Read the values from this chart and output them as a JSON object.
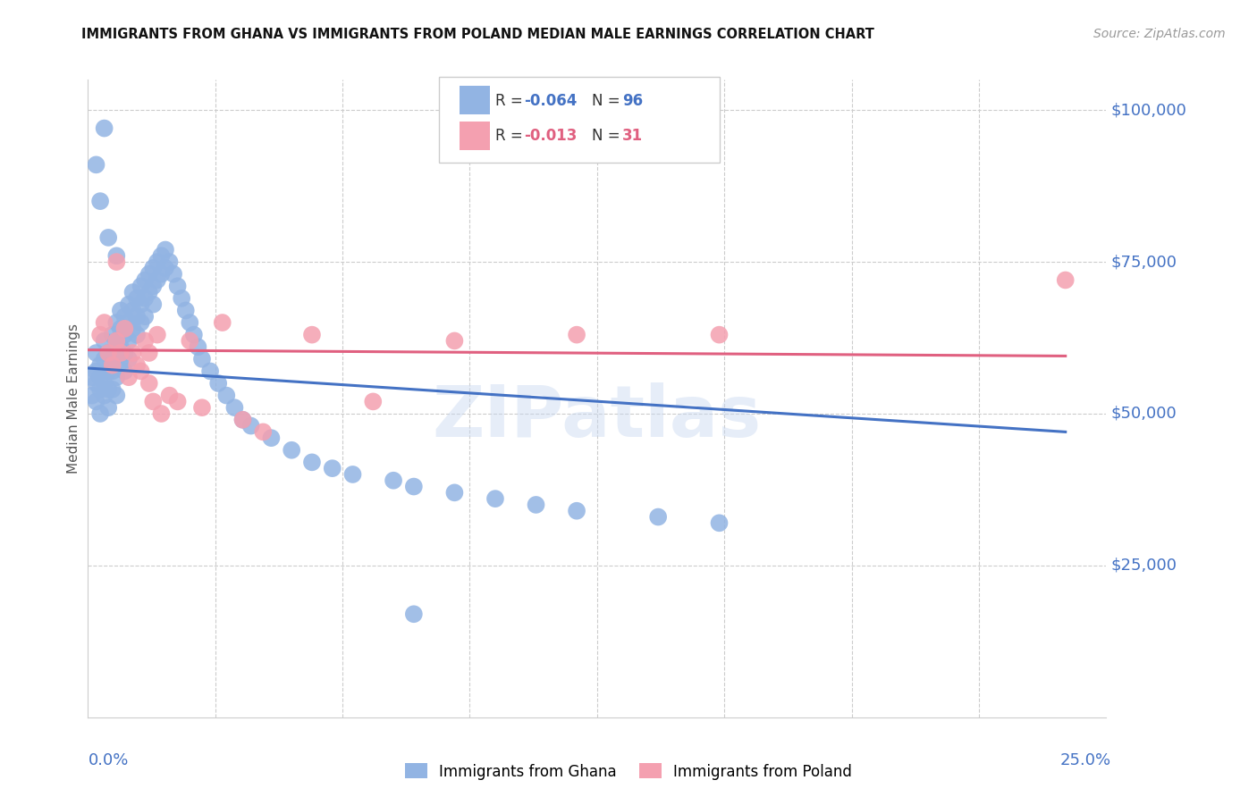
{
  "title": "IMMIGRANTS FROM GHANA VS IMMIGRANTS FROM POLAND MEDIAN MALE EARNINGS CORRELATION CHART",
  "source": "Source: ZipAtlas.com",
  "ylabel": "Median Male Earnings",
  "xlim": [
    0.0,
    0.25
  ],
  "ylim": [
    0,
    105000
  ],
  "ghana_R": "-0.064",
  "ghana_N": "96",
  "poland_R": "-0.013",
  "poland_N": "31",
  "ghana_color": "#92b4e3",
  "poland_color": "#f4a0b0",
  "ghana_line_color": "#4472c4",
  "poland_line_color": "#e06080",
  "ghana_line_x0": 0.0,
  "ghana_line_y0": 57500,
  "ghana_line_x1": 0.24,
  "ghana_line_y1": 47000,
  "poland_line_x0": 0.0,
  "poland_line_y0": 60500,
  "poland_line_x1": 0.24,
  "poland_line_y1": 59500,
  "ghana_x": [
    0.001,
    0.001,
    0.002,
    0.002,
    0.002,
    0.002,
    0.003,
    0.003,
    0.003,
    0.003,
    0.004,
    0.004,
    0.004,
    0.004,
    0.005,
    0.005,
    0.005,
    0.005,
    0.006,
    0.006,
    0.006,
    0.006,
    0.007,
    0.007,
    0.007,
    0.007,
    0.007,
    0.008,
    0.008,
    0.008,
    0.008,
    0.009,
    0.009,
    0.009,
    0.009,
    0.01,
    0.01,
    0.01,
    0.01,
    0.011,
    0.011,
    0.011,
    0.012,
    0.012,
    0.012,
    0.013,
    0.013,
    0.013,
    0.014,
    0.014,
    0.014,
    0.015,
    0.015,
    0.016,
    0.016,
    0.016,
    0.017,
    0.017,
    0.018,
    0.018,
    0.019,
    0.019,
    0.02,
    0.021,
    0.022,
    0.023,
    0.024,
    0.025,
    0.026,
    0.027,
    0.028,
    0.03,
    0.032,
    0.034,
    0.036,
    0.038,
    0.04,
    0.045,
    0.05,
    0.055,
    0.06,
    0.065,
    0.075,
    0.08,
    0.09,
    0.1,
    0.11,
    0.12,
    0.14,
    0.155,
    0.002,
    0.003,
    0.004,
    0.005,
    0.007,
    0.08
  ],
  "ghana_y": [
    56000,
    53000,
    55000,
    52000,
    60000,
    57000,
    54000,
    58000,
    56000,
    50000,
    62000,
    59000,
    55000,
    53000,
    60000,
    57000,
    54000,
    51000,
    63000,
    60000,
    57000,
    54000,
    65000,
    62000,
    59000,
    56000,
    53000,
    67000,
    64000,
    61000,
    58000,
    66000,
    63000,
    60000,
    57000,
    68000,
    65000,
    62000,
    59000,
    70000,
    67000,
    64000,
    69000,
    66000,
    63000,
    71000,
    68000,
    65000,
    72000,
    69000,
    66000,
    73000,
    70000,
    74000,
    71000,
    68000,
    75000,
    72000,
    76000,
    73000,
    77000,
    74000,
    75000,
    73000,
    71000,
    69000,
    67000,
    65000,
    63000,
    61000,
    59000,
    57000,
    55000,
    53000,
    51000,
    49000,
    48000,
    46000,
    44000,
    42000,
    41000,
    40000,
    39000,
    38000,
    37000,
    36000,
    35000,
    34000,
    33000,
    32000,
    91000,
    85000,
    97000,
    79000,
    76000,
    17000
  ],
  "poland_x": [
    0.003,
    0.004,
    0.005,
    0.006,
    0.007,
    0.007,
    0.008,
    0.009,
    0.01,
    0.011,
    0.012,
    0.013,
    0.014,
    0.015,
    0.015,
    0.016,
    0.017,
    0.018,
    0.02,
    0.022,
    0.025,
    0.028,
    0.033,
    0.038,
    0.043,
    0.055,
    0.07,
    0.09,
    0.12,
    0.155,
    0.24
  ],
  "poland_y": [
    63000,
    65000,
    60000,
    58000,
    75000,
    62000,
    60000,
    64000,
    56000,
    60000,
    58000,
    57000,
    62000,
    60000,
    55000,
    52000,
    63000,
    50000,
    53000,
    52000,
    62000,
    51000,
    65000,
    49000,
    47000,
    63000,
    52000,
    62000,
    63000,
    63000,
    72000
  ]
}
